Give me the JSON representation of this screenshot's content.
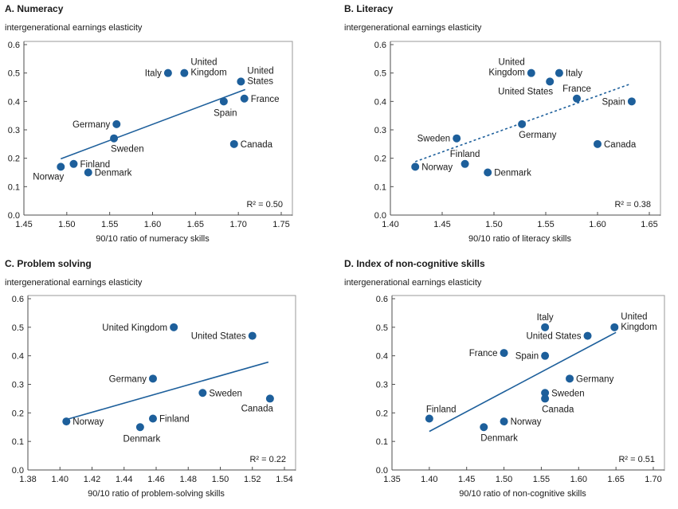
{
  "chart_data": [
    {
      "panel": "A",
      "type": "scatter",
      "title": "A. Numeracy",
      "ylabel": "intergenerational earnings elasticity",
      "xlabel": "90/10 ratio of numeracy skills",
      "xlim": [
        1.45,
        1.75
      ],
      "ylim": [
        0,
        0.6
      ],
      "xticks": [
        1.45,
        1.5,
        1.55,
        1.6,
        1.65,
        1.7,
        1.75
      ],
      "xtick_labels": [
        "1.45",
        "1.50",
        "1.55",
        "1.60",
        "1.65",
        "1.70",
        "1.75"
      ],
      "yticks": [
        0,
        0.1,
        0.2,
        0.3,
        0.4,
        0.5,
        0.6
      ],
      "ytick_labels": [
        "0.0",
        "0.1",
        "0.2",
        "0.3",
        "0.4",
        "0.5",
        "0.6"
      ],
      "points": [
        {
          "country": "Norway",
          "x": 1.493,
          "y": 0.17,
          "label": [
            "Norway"
          ],
          "pos": "below-left"
        },
        {
          "country": "Finland",
          "x": 1.508,
          "y": 0.18,
          "label": [
            "Finland"
          ],
          "pos": "right"
        },
        {
          "country": "Denmark",
          "x": 1.525,
          "y": 0.15,
          "label": [
            "Denmark"
          ],
          "pos": "right"
        },
        {
          "country": "Germany",
          "x": 1.558,
          "y": 0.32,
          "label": [
            "Germany"
          ],
          "pos": "left"
        },
        {
          "country": "Sweden",
          "x": 1.555,
          "y": 0.27,
          "label": [
            "Sweden"
          ],
          "pos": "below-right"
        },
        {
          "country": "Italy",
          "x": 1.618,
          "y": 0.5,
          "label": [
            "Italy"
          ],
          "pos": "left"
        },
        {
          "country": "United Kingdom",
          "x": 1.637,
          "y": 0.5,
          "label": [
            "United",
            "Kingdom"
          ],
          "pos": "right-split"
        },
        {
          "country": "United States",
          "x": 1.703,
          "y": 0.47,
          "label": [
            "United",
            "States"
          ],
          "pos": "right-split"
        },
        {
          "country": "Spain",
          "x": 1.683,
          "y": 0.4,
          "label": [
            "Spain"
          ],
          "pos": "below"
        },
        {
          "country": "France",
          "x": 1.707,
          "y": 0.41,
          "label": [
            "France"
          ],
          "pos": "right"
        },
        {
          "country": "Canada",
          "x": 1.695,
          "y": 0.25,
          "label": [
            "Canada"
          ],
          "pos": "right"
        }
      ],
      "fit": {
        "x": [
          1.493,
          1.708
        ],
        "y": [
          0.198,
          0.442
        ],
        "style": "solid"
      },
      "r2": "R² = 0.50"
    },
    {
      "panel": "B",
      "type": "scatter",
      "title": "B. Literacy",
      "ylabel": "intergenerational earnings elasticity",
      "xlabel": "90/10 ratio of literacy skills",
      "xlim": [
        1.4,
        1.65
      ],
      "ylim": [
        0,
        0.6
      ],
      "xticks": [
        1.4,
        1.45,
        1.5,
        1.55,
        1.6,
        1.65
      ],
      "xtick_labels": [
        "1.40",
        "1.45",
        "1.50",
        "1.55",
        "1.60",
        "1.65"
      ],
      "yticks": [
        0,
        0.1,
        0.2,
        0.3,
        0.4,
        0.5,
        0.6
      ],
      "ytick_labels": [
        "0.0",
        "0.1",
        "0.2",
        "0.3",
        "0.4",
        "0.5",
        "0.6"
      ],
      "points": [
        {
          "country": "Norway",
          "x": 1.424,
          "y": 0.17,
          "label": [
            "Norway"
          ],
          "pos": "right"
        },
        {
          "country": "Finland",
          "x": 1.472,
          "y": 0.18,
          "label": [
            "Finland"
          ],
          "pos": "above"
        },
        {
          "country": "Denmark",
          "x": 1.494,
          "y": 0.15,
          "label": [
            "Denmark"
          ],
          "pos": "right"
        },
        {
          "country": "Sweden",
          "x": 1.464,
          "y": 0.27,
          "label": [
            "Sweden"
          ],
          "pos": "left"
        },
        {
          "country": "Germany",
          "x": 1.527,
          "y": 0.32,
          "label": [
            "Germany"
          ],
          "pos": "below-right"
        },
        {
          "country": "United Kingdom",
          "x": 1.536,
          "y": 0.5,
          "label": [
            "United",
            "Kingdom"
          ],
          "pos": "left-split"
        },
        {
          "country": "United States",
          "x": 1.554,
          "y": 0.47,
          "label": [
            "United States"
          ],
          "pos": "below-left"
        },
        {
          "country": "Italy",
          "x": 1.563,
          "y": 0.5,
          "label": [
            "Italy"
          ],
          "pos": "right"
        },
        {
          "country": "France",
          "x": 1.58,
          "y": 0.41,
          "label": [
            "France"
          ],
          "pos": "above"
        },
        {
          "country": "Spain",
          "x": 1.633,
          "y": 0.4,
          "label": [
            "Spain"
          ],
          "pos": "left"
        },
        {
          "country": "Canada",
          "x": 1.6,
          "y": 0.25,
          "label": [
            "Canada"
          ],
          "pos": "right"
        }
      ],
      "fit": {
        "x": [
          1.424,
          1.632
        ],
        "y": [
          0.188,
          0.462
        ],
        "style": "dotted"
      },
      "r2": "R² = 0.38"
    },
    {
      "panel": "C",
      "type": "scatter",
      "title": "C. Problem solving",
      "ylabel": "intergenerational earnings elasticity",
      "xlabel": "90/10 ratio of problem-solving skills",
      "xlim": [
        1.38,
        1.54
      ],
      "ylim": [
        0,
        0.6
      ],
      "xticks": [
        1.38,
        1.4,
        1.42,
        1.44,
        1.46,
        1.48,
        1.5,
        1.52,
        1.54
      ],
      "xtick_labels": [
        "1.38",
        "1.40",
        "1.42",
        "1.44",
        "1.46",
        "1.48",
        "1.50",
        "1.52",
        "1.54"
      ],
      "yticks": [
        0,
        0.1,
        0.2,
        0.3,
        0.4,
        0.5,
        0.6
      ],
      "ytick_labels": [
        "0.0",
        "0.1",
        "0.2",
        "0.3",
        "0.4",
        "0.5",
        "0.6"
      ],
      "points": [
        {
          "country": "Norway",
          "x": 1.404,
          "y": 0.17,
          "label": [
            "Norway"
          ],
          "pos": "right"
        },
        {
          "country": "Denmark",
          "x": 1.45,
          "y": 0.15,
          "label": [
            "Denmark"
          ],
          "pos": "below"
        },
        {
          "country": "Finland",
          "x": 1.458,
          "y": 0.18,
          "label": [
            "Finland"
          ],
          "pos": "right"
        },
        {
          "country": "Germany",
          "x": 1.458,
          "y": 0.32,
          "label": [
            "Germany"
          ],
          "pos": "left"
        },
        {
          "country": "United Kingdom",
          "x": 1.471,
          "y": 0.5,
          "label": [
            "United Kingdom"
          ],
          "pos": "left"
        },
        {
          "country": "Sweden",
          "x": 1.489,
          "y": 0.27,
          "label": [
            "Sweden"
          ],
          "pos": "right"
        },
        {
          "country": "United States",
          "x": 1.52,
          "y": 0.47,
          "label": [
            "United States"
          ],
          "pos": "left"
        },
        {
          "country": "Canada",
          "x": 1.531,
          "y": 0.25,
          "label": [
            "Canada"
          ],
          "pos": "below-left"
        }
      ],
      "fit": {
        "x": [
          1.403,
          1.53
        ],
        "y": [
          0.175,
          0.378
        ],
        "style": "solid"
      },
      "r2": "R² = 0.22"
    },
    {
      "panel": "D",
      "type": "scatter",
      "title": "D. Index of non-cognitive skills",
      "ylabel": "intergenerational earnings elasticity",
      "xlabel": "90/10 ratio of non-cognitive skills",
      "xlim": [
        1.35,
        1.7
      ],
      "ylim": [
        0,
        0.6
      ],
      "xticks": [
        1.35,
        1.4,
        1.45,
        1.5,
        1.55,
        1.6,
        1.65,
        1.7
      ],
      "xtick_labels": [
        "1.35",
        "1.40",
        "1.45",
        "1.50",
        "1.55",
        "1.60",
        "1.65",
        "1.70"
      ],
      "yticks": [
        0,
        0.1,
        0.2,
        0.3,
        0.4,
        0.5,
        0.6
      ],
      "ytick_labels": [
        "0.0",
        "0.1",
        "0.2",
        "0.3",
        "0.4",
        "0.5",
        "0.6"
      ],
      "points": [
        {
          "country": "Finland",
          "x": 1.4,
          "y": 0.18,
          "label": [
            "Finland"
          ],
          "pos": "above-right"
        },
        {
          "country": "Denmark",
          "x": 1.473,
          "y": 0.15,
          "label": [
            "Denmark"
          ],
          "pos": "below-right"
        },
        {
          "country": "Norway",
          "x": 1.5,
          "y": 0.17,
          "label": [
            "Norway"
          ],
          "pos": "right"
        },
        {
          "country": "France",
          "x": 1.5,
          "y": 0.41,
          "label": [
            "France"
          ],
          "pos": "left"
        },
        {
          "country": "Italy",
          "x": 1.555,
          "y": 0.5,
          "label": [
            "Italy"
          ],
          "pos": "above"
        },
        {
          "country": "Spain",
          "x": 1.555,
          "y": 0.4,
          "label": [
            "Spain"
          ],
          "pos": "left"
        },
        {
          "country": "Sweden",
          "x": 1.555,
          "y": 0.27,
          "label": [
            "Sweden"
          ],
          "pos": "right"
        },
        {
          "country": "Canada",
          "x": 1.555,
          "y": 0.25,
          "label": [
            "Canada"
          ],
          "pos": "below-right"
        },
        {
          "country": "Germany",
          "x": 1.588,
          "y": 0.32,
          "label": [
            "Germany"
          ],
          "pos": "right"
        },
        {
          "country": "United States",
          "x": 1.612,
          "y": 0.47,
          "label": [
            "United States"
          ],
          "pos": "left"
        },
        {
          "country": "United Kingdom",
          "x": 1.648,
          "y": 0.5,
          "label": [
            "United",
            "Kingdom"
          ],
          "pos": "right-split"
        }
      ],
      "fit": {
        "x": [
          1.4,
          1.65
        ],
        "y": [
          0.135,
          0.482
        ],
        "style": "solid"
      },
      "r2": "R² = 0.51"
    }
  ],
  "colors": {
    "marker": "#1d5f9b",
    "line": "#1d5f9b",
    "axis": "#4d4d4d",
    "frame": "#9a9a9a",
    "text": "#1a1a1a"
  }
}
